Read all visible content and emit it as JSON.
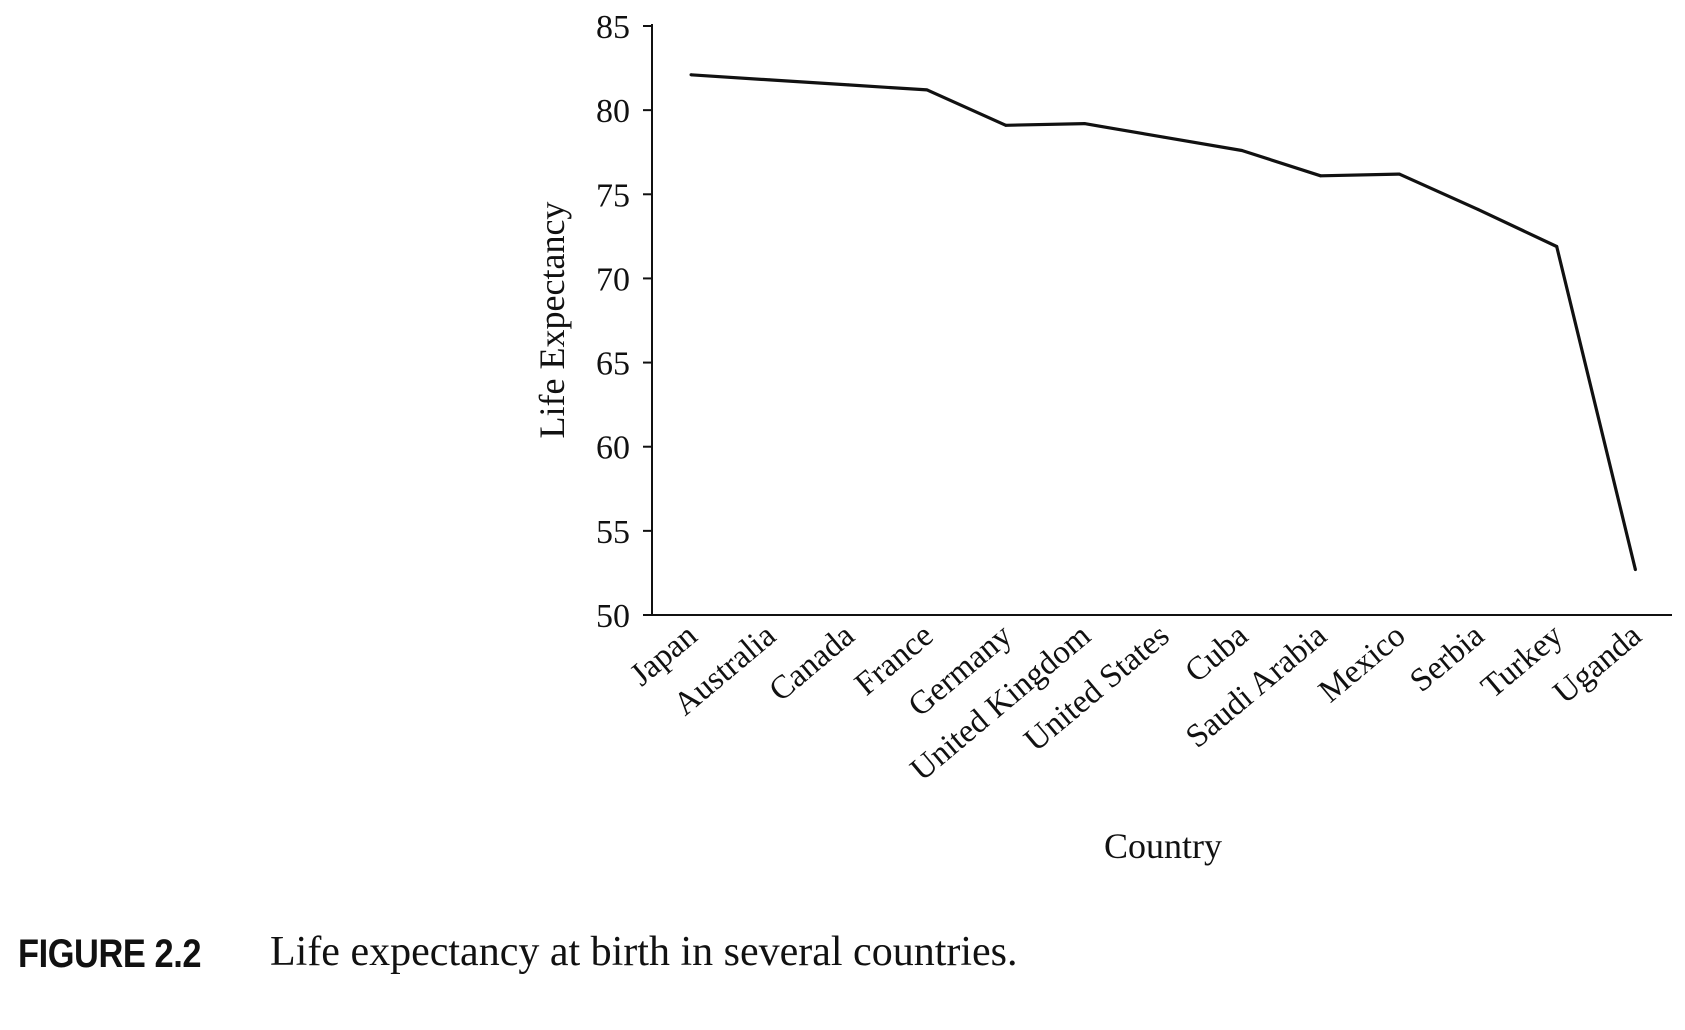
{
  "figure": {
    "label": "FIGURE 2.2",
    "caption": "Life expectancy at birth in several countries."
  },
  "chart_data": {
    "type": "line",
    "xlabel": "Country",
    "ylabel": "Life Expectancy",
    "ylim": [
      50,
      85
    ],
    "yticks": [
      50,
      55,
      60,
      65,
      70,
      75,
      80,
      85
    ],
    "categories": [
      "Japan",
      "Australia",
      "Canada",
      "France",
      "Germany",
      "United Kingdom",
      "United States",
      "Cuba",
      "Saudi Arabia",
      "Mexico",
      "Serbia",
      "Turkey",
      "Uganda"
    ],
    "series": [
      {
        "values": [
          82.1,
          81.8,
          81.5,
          81.2,
          79.1,
          79.2,
          78.4,
          77.6,
          76.1,
          76.2,
          74.1,
          71.9,
          52.7
        ]
      }
    ],
    "grid": false,
    "legend": "none",
    "line_color": "#111111"
  }
}
